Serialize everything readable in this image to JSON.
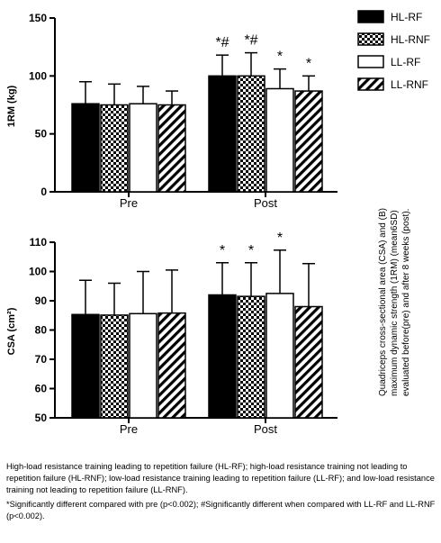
{
  "legend": {
    "items": [
      {
        "label": "HL-RF",
        "pattern": "solid"
      },
      {
        "label": "HL-RNF",
        "pattern": "checker"
      },
      {
        "label": "LL-RF",
        "pattern": "white"
      },
      {
        "label": "LL-RNF",
        "pattern": "hatch"
      }
    ]
  },
  "chart_data": [
    {
      "type": "bar",
      "title": "",
      "ylabel": "1RM (kg)",
      "xlabel": "",
      "ylim": [
        0,
        150
      ],
      "yticks": [
        "0",
        "50",
        "100",
        "150"
      ],
      "categories": [
        "Pre",
        "Post"
      ],
      "series": [
        {
          "name": "HL-RF",
          "values": [
            76,
            100
          ],
          "sd": [
            19,
            18
          ]
        },
        {
          "name": "HL-RNF",
          "values": [
            75,
            100
          ],
          "sd": [
            18,
            20
          ]
        },
        {
          "name": "LL-RF",
          "values": [
            76,
            89
          ],
          "sd": [
            15,
            17
          ]
        },
        {
          "name": "LL-RNF",
          "values": [
            75,
            87
          ],
          "sd": [
            12,
            13
          ]
        }
      ],
      "annotations": [
        {
          "category": "Post",
          "series": "HL-RF",
          "text": "*#"
        },
        {
          "category": "Post",
          "series": "HL-RNF",
          "text": "*#"
        },
        {
          "category": "Post",
          "series": "LL-RF",
          "text": "*"
        },
        {
          "category": "Post",
          "series": "LL-RNF",
          "text": "*"
        }
      ]
    },
    {
      "type": "bar",
      "title": "",
      "ylabel": "CSA (cm²)",
      "xlabel": "",
      "ylim": [
        50,
        110
      ],
      "yticks": [
        "50",
        "60",
        "70",
        "80",
        "90",
        "100",
        "110"
      ],
      "categories": [
        "Pre",
        "Post"
      ],
      "series": [
        {
          "name": "HL-RF",
          "values": [
            85.3,
            92
          ],
          "sd": [
            11.7,
            11
          ]
        },
        {
          "name": "HL-RNF",
          "values": [
            85.1,
            91.5
          ],
          "sd": [
            10.9,
            11.5
          ]
        },
        {
          "name": "LL-RF",
          "values": [
            85.6,
            92.5
          ],
          "sd": [
            14.4,
            14.8
          ]
        },
        {
          "name": "LL-RNF",
          "values": [
            85.8,
            88
          ],
          "sd": [
            14.7,
            14.7
          ]
        }
      ],
      "annotations": [
        {
          "category": "Post",
          "series": "HL-RF",
          "text": "*"
        },
        {
          "category": "Post",
          "series": "HL-RNF",
          "text": "*"
        },
        {
          "category": "Post",
          "series": "LL-RF",
          "text": "*"
        }
      ]
    }
  ],
  "caption": "Quadriceps cross-sectional area (CSA) and (B) maximum dynamic strength (1RM) (mean6SD) evaluated before(pre) and after 8 weeks (post).",
  "footnotes": [
    "High-load resistance training leading to repetition failure (HL-RF); high-load resistance training not leading to repetition failure (HL-RNF); low-load resistance training leading to repetition failure (LL-RF); and low-load resistance training not leading to repetition failure (LL-RNF).",
    "*Significantly different compared with pre (p<0.002); #Significantly different when compared with LL-RF and LL-RNF (p<0.002)."
  ]
}
